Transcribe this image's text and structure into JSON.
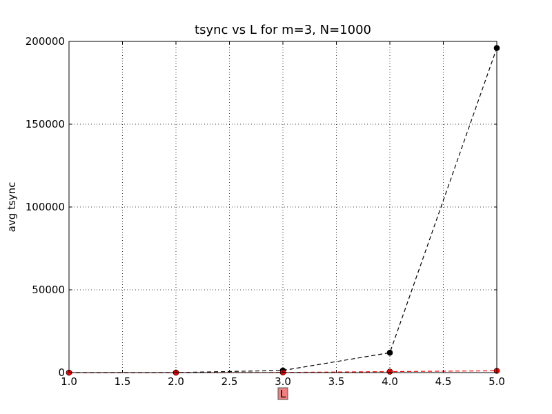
{
  "chart_data": {
    "type": "line",
    "title": "tsync vs L for m=3, N=1000",
    "xlabel": "L",
    "ylabel": "avg tsync",
    "xlim": [
      1.0,
      5.0
    ],
    "ylim": [
      0,
      200000
    ],
    "x_ticks": [
      "1.0",
      "1.5",
      "2.0",
      "2.5",
      "3.0",
      "3.5",
      "4.0",
      "4.5",
      "5.0"
    ],
    "y_ticks": [
      "0",
      "50000",
      "100000",
      "150000",
      "200000"
    ],
    "grid": true,
    "xlabel_highlight_color": "#f08080",
    "series": [
      {
        "color": "#000000",
        "line_style": "dashed",
        "marker": "circle",
        "x": [
          1,
          2,
          3,
          4,
          5
        ],
        "y": [
          0,
          10,
          1300,
          12000,
          196000
        ]
      },
      {
        "color": "#ff0000",
        "line_style": "dashed",
        "marker": "circle",
        "x": [
          1,
          2,
          3,
          4,
          5
        ],
        "y": [
          0,
          5,
          100,
          600,
          1100
        ]
      }
    ]
  }
}
